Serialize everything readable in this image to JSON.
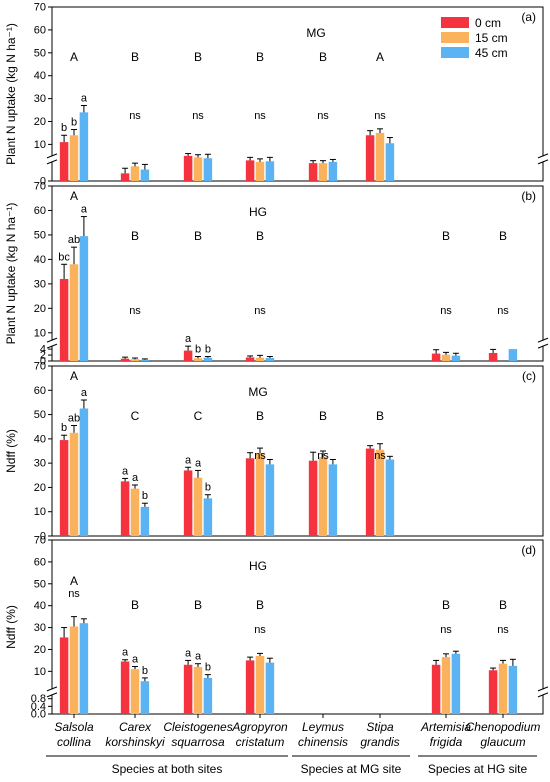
{
  "colors": {
    "0 cm": "#f5333f",
    "15 cm": "#fbb25c",
    "45 cm": "#5cb3f4"
  },
  "legend": {
    "items": [
      "0 cm",
      "15 cm",
      "45 cm"
    ],
    "placement": "top-right"
  },
  "species": [
    {
      "line1": "Salsola",
      "line2": "collina"
    },
    {
      "line1": "Carex",
      "line2": "korshinskyi"
    },
    {
      "line1": "Cleistogenes",
      "line2": "squarrosa"
    },
    {
      "line1": "Agropyron",
      "line2": "cristatum"
    },
    {
      "line1": "Leymus",
      "line2": "chinensis"
    },
    {
      "line1": "Stipa",
      "line2": "grandis"
    },
    {
      "line1": "Artemisia",
      "line2": "frigida"
    },
    {
      "line1": "Chenopodium",
      "line2": "glaucum"
    }
  ],
  "groups": [
    {
      "label": "Species at both sites"
    },
    {
      "label": "Species at MG site"
    },
    {
      "label": "Species at HG site"
    }
  ],
  "chart_data": [
    {
      "panel": "(a)",
      "site": "MG",
      "type": "bar",
      "ylabel": "Plant N uptake (kg N ha⁻¹)",
      "axis_break": {
        "lower": [
          0,
          3
        ],
        "upper": [
          5,
          70
        ]
      },
      "ticks": [
        0,
        10,
        20,
        30,
        40,
        50,
        60,
        70
      ],
      "series_names": [
        "0 cm",
        "15 cm",
        "45 cm"
      ],
      "values": [
        [
          11,
          14,
          24
        ],
        [
          1.2,
          2.3,
          1.8
        ],
        [
          5,
          4.5,
          4.2
        ],
        [
          3.5,
          3,
          3.2
        ],
        [
          2.8,
          2.8,
          3
        ],
        [
          14,
          15,
          10.5
        ],
        null,
        null
      ],
      "errors": [
        [
          3,
          2.5,
          3
        ],
        [
          0.8,
          0.5,
          0.8
        ],
        [
          1,
          1,
          1.5
        ],
        [
          1,
          1,
          1.3
        ],
        [
          0.6,
          0.6,
          0.8
        ],
        [
          2,
          1.8,
          2.5
        ],
        null,
        null
      ],
      "letters": [
        [
          "b",
          "b",
          "a"
        ],
        null,
        null,
        null,
        null,
        null,
        null,
        null
      ],
      "ns": [
        false,
        true,
        true,
        true,
        true,
        true,
        false,
        false
      ],
      "upper_letters": [
        "A",
        "B",
        "B",
        "B",
        "B",
        "A",
        null,
        null
      ]
    },
    {
      "panel": "(b)",
      "site": "HG",
      "type": "bar",
      "ylabel": "Plant N uptake (kg N ha⁻¹)",
      "axis_break": {
        "lower": [
          0,
          5
        ],
        "upper": [
          7,
          70
        ]
      },
      "ticks": [
        0,
        2,
        4,
        10,
        20,
        30,
        40,
        50,
        60,
        70
      ],
      "series_names": [
        "0 cm",
        "15 cm",
        "45 cm"
      ],
      "values": [
        [
          32,
          38,
          49.5
        ],
        [
          0.8,
          0.6,
          0.4
        ],
        [
          3.5,
          0.9,
          1.1
        ],
        [
          1.2,
          1.1,
          1.0
        ],
        null,
        null,
        [
          2.5,
          2.1,
          1.8
        ],
        [
          2.7,
          null,
          4
        ]
      ],
      "errors": [
        [
          6,
          7,
          8
        ],
        [
          0.5,
          0.4,
          0.3
        ],
        [
          1.5,
          0.6,
          0.4
        ],
        [
          0.5,
          0.8,
          0.5
        ],
        null,
        null,
        [
          1.3,
          0.8,
          0.8
        ],
        [
          1.2,
          null,
          0
        ]
      ],
      "letters": [
        [
          "bc",
          "ab",
          "a"
        ],
        null,
        [
          "a",
          "b",
          "b"
        ],
        null,
        null,
        null,
        null,
        null
      ],
      "ns": [
        false,
        true,
        false,
        true,
        false,
        false,
        true,
        true
      ],
      "upper_letters": [
        "A",
        "B",
        "B",
        "B",
        null,
        null,
        "B",
        "B"
      ]
    },
    {
      "panel": "(c)",
      "site": "MG",
      "type": "bar",
      "ylabel": "Ndff (%)",
      "ticks": [
        0,
        10,
        20,
        30,
        40,
        50,
        60,
        70
      ],
      "series_names": [
        "0 cm",
        "15 cm",
        "45 cm"
      ],
      "values": [
        [
          39.5,
          42.5,
          52.5
        ],
        [
          22.5,
          19.5,
          12
        ],
        [
          27,
          24,
          15.5
        ],
        [
          32,
          34,
          29.5
        ],
        [
          31,
          32.5,
          29.5
        ],
        [
          36,
          35.5,
          31.5
        ],
        null,
        null
      ],
      "errors": [
        [
          2,
          3,
          3.5
        ],
        [
          1.2,
          1.5,
          1.5
        ],
        [
          1.3,
          3,
          1.5
        ],
        [
          2.3,
          2.2,
          2
        ],
        [
          3.5,
          2.5,
          2
        ],
        [
          1.2,
          2.5,
          1.3
        ],
        null,
        null
      ],
      "letters": [
        [
          "b",
          "ab",
          "a"
        ],
        [
          "a",
          "a",
          "b"
        ],
        [
          "a",
          "a",
          "b"
        ],
        null,
        null,
        null,
        null,
        null
      ],
      "ns": [
        false,
        false,
        false,
        true,
        true,
        true,
        false,
        false
      ],
      "upper_letters": [
        "A",
        "C",
        "C",
        "B",
        "B",
        "B",
        null,
        null
      ]
    },
    {
      "panel": "(d)",
      "site": "HG",
      "type": "bar",
      "ylabel": "Ndff (%)",
      "axis_break": {
        "lower": [
          0,
          1
        ],
        "upper": [
          2,
          70
        ]
      },
      "ticks": [
        0.0,
        0.4,
        0.8,
        10,
        20,
        30,
        40,
        50,
        60,
        70
      ],
      "series_names": [
        "0 cm",
        "15 cm",
        "45 cm"
      ],
      "values": [
        [
          25.5,
          30.5,
          32
        ],
        [
          14.5,
          11,
          5.5
        ],
        [
          13,
          12,
          7
        ],
        [
          15,
          17,
          14
        ],
        null,
        null,
        [
          13,
          16.5,
          18
        ],
        [
          10.5,
          13.5,
          12.5
        ]
      ],
      "errors": [
        [
          4.5,
          4.5,
          2
        ],
        [
          0.8,
          1.2,
          1.5
        ],
        [
          2,
          1.5,
          1.5
        ],
        [
          1.5,
          1.2,
          2
        ],
        null,
        null,
        [
          2,
          1.5,
          1.2
        ],
        [
          1,
          1.5,
          3
        ]
      ],
      "letters": [
        null,
        [
          "a",
          "a",
          "b"
        ],
        [
          "a",
          "a",
          "b"
        ],
        null,
        null,
        null,
        null,
        null
      ],
      "ns": [
        true,
        false,
        false,
        true,
        false,
        false,
        true,
        true
      ],
      "upper_letters": [
        "A",
        "B",
        "B",
        "B",
        null,
        null,
        "B",
        "B"
      ]
    }
  ]
}
